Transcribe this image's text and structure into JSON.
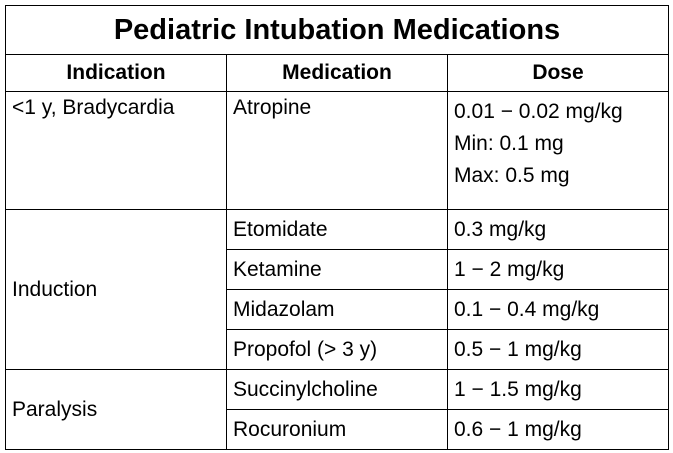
{
  "title": "Pediatric Intubation Medications",
  "headers": [
    "Indication",
    "Medication",
    "Dose"
  ],
  "rows": {
    "bradycardia": {
      "indication": "<1 y, Bradycardia",
      "medication": "Atropine",
      "dose": [
        "0.01 − 0.02 mg/kg",
        "Min: 0.1 mg",
        "Max: 0.5 mg"
      ]
    },
    "induction": {
      "indication": "Induction",
      "meds": [
        {
          "medication": "Etomidate",
          "dose": "0.3 mg/kg"
        },
        {
          "medication": "Ketamine",
          "dose": "1 − 2 mg/kg"
        },
        {
          "medication": "Midazolam",
          "dose": "0.1 − 0.4 mg/kg"
        },
        {
          "medication": "Propofol (> 3 y)",
          "dose": "0.5 − 1 mg/kg"
        }
      ]
    },
    "paralysis": {
      "indication": "Paralysis",
      "meds": [
        {
          "medication": "Succinylcholine",
          "dose": "1 − 1.5 mg/kg"
        },
        {
          "medication": "Rocuronium",
          "dose": "0.6 − 1 mg/kg"
        }
      ]
    }
  }
}
